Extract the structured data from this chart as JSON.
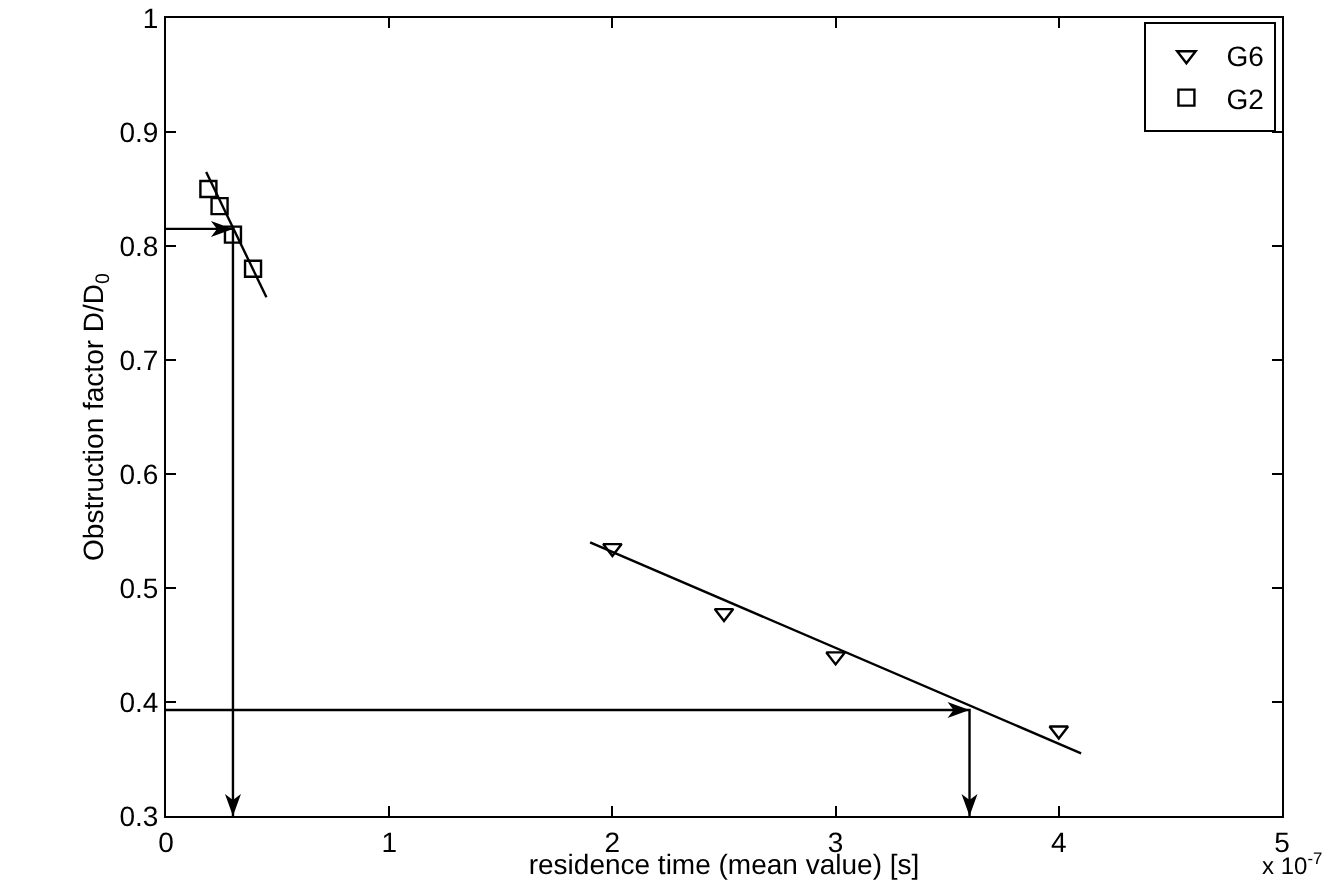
{
  "chart_data": {
    "type": "scatter",
    "xlabel": "residence time (mean value) [s]",
    "ylabel": "Obstruction factor D/D$_{0}$",
    "annotations": [
      "x 10$^{-7}$"
    ],
    "xlim": [
      0,
      5
    ],
    "xticks": [
      0,
      1,
      2,
      3,
      4,
      5
    ],
    "ylim": [
      0.3,
      1
    ],
    "yticks": [
      0.3,
      0.4,
      0.5,
      0.6,
      0.7,
      0.8,
      0.9,
      1
    ],
    "grid": false,
    "legend": "top right",
    "series": [
      {
        "name": "G6",
        "marker": "triangle",
        "color": "#000000",
        "x": [
          2,
          2.5,
          3,
          4
        ],
        "values": [
          0.535,
          0.478,
          0.44,
          0.375
        ]
      },
      {
        "name": "G2",
        "marker": "square",
        "color": "#000000",
        "x": [
          0.19,
          0.24,
          0.3,
          0.39
        ],
        "values": [
          0.85,
          0.835,
          0.81,
          0.78
        ]
      },
      {
        "type": "line",
        "color": "#000000",
        "line_style": "solid",
        "x": [
          1.9,
          4.1
        ],
        "values": [
          0.54,
          0.355
        ]
      },
      {
        "type": "line",
        "color": "#000000",
        "line_style": "solid",
        "x": [
          0.18,
          0.45
        ],
        "values": [
          0.865,
          0.755
        ]
      }
    ]
  }
}
